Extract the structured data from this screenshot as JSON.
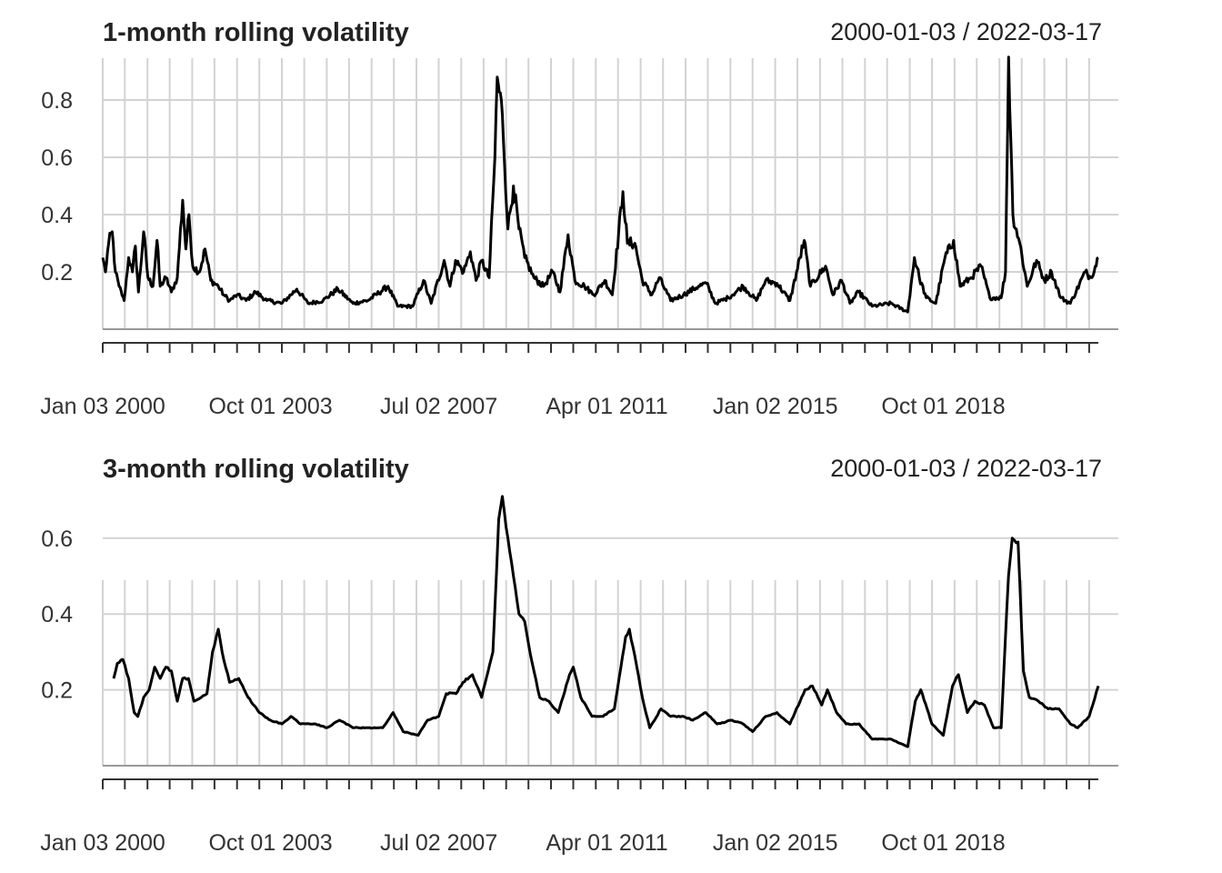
{
  "chart_data": [
    {
      "type": "line",
      "title": "1-month rolling volatility",
      "date_range_label": "2000-01-03 / 2022-03-17",
      "x_start": "2000-01-03",
      "x_end": "2022-03-17",
      "x_tick_labels": [
        {
          "date": "2000-01-03",
          "label": "Jan 03 2000"
        },
        {
          "date": "2003-10-01",
          "label": "Oct 01 2003"
        },
        {
          "date": "2007-07-02",
          "label": "Jul 02 2007"
        },
        {
          "date": "2011-04-01",
          "label": "Apr 01 2011"
        },
        {
          "date": "2015-01-02",
          "label": "Jan 02 2015"
        },
        {
          "date": "2018-10-01",
          "label": "Oct 01 2018"
        }
      ],
      "ylim": [
        0.0,
        0.95
      ],
      "y_ticks": [
        0.2,
        0.4,
        0.6,
        0.8
      ],
      "grid": true,
      "color": "#000000",
      "series": [
        {
          "points": [
            [
              "2000-01-03",
              0.25
            ],
            [
              "2000-01-25",
              0.2
            ],
            [
              "2000-02-20",
              0.3
            ],
            [
              "2000-03-20",
              0.34
            ],
            [
              "2000-04-15",
              0.2
            ],
            [
              "2000-05-15",
              0.15
            ],
            [
              "2000-06-25",
              0.1
            ],
            [
              "2000-08-01",
              0.25
            ],
            [
              "2000-09-01",
              0.2
            ],
            [
              "2000-09-25",
              0.29
            ],
            [
              "2000-10-20",
              0.13
            ],
            [
              "2000-12-01",
              0.34
            ],
            [
              "2001-01-05",
              0.18
            ],
            [
              "2001-02-15",
              0.15
            ],
            [
              "2001-03-20",
              0.31
            ],
            [
              "2001-04-15",
              0.15
            ],
            [
              "2001-06-01",
              0.18
            ],
            [
              "2001-07-15",
              0.13
            ],
            [
              "2001-09-01",
              0.18
            ],
            [
              "2001-10-15",
              0.45
            ],
            [
              "2001-11-10",
              0.28
            ],
            [
              "2001-12-05",
              0.4
            ],
            [
              "2002-01-05",
              0.22
            ],
            [
              "2002-03-01",
              0.2
            ],
            [
              "2002-04-15",
              0.28
            ],
            [
              "2002-06-01",
              0.17
            ],
            [
              "2002-08-01",
              0.15
            ],
            [
              "2002-09-15",
              0.12
            ],
            [
              "2002-11-01",
              0.1
            ],
            [
              "2003-01-01",
              0.12
            ],
            [
              "2003-03-15",
              0.1
            ],
            [
              "2003-06-01",
              0.13
            ],
            [
              "2003-09-01",
              0.1
            ],
            [
              "2004-01-01",
              0.09
            ],
            [
              "2004-05-01",
              0.14
            ],
            [
              "2004-08-01",
              0.09
            ],
            [
              "2004-12-01",
              0.1
            ],
            [
              "2005-04-01",
              0.14
            ],
            [
              "2005-08-01",
              0.09
            ],
            [
              "2005-12-01",
              0.1
            ],
            [
              "2006-05-15",
              0.15
            ],
            [
              "2006-08-01",
              0.08
            ],
            [
              "2006-12-01",
              0.08
            ],
            [
              "2007-02-28",
              0.17
            ],
            [
              "2007-05-01",
              0.09
            ],
            [
              "2007-08-15",
              0.24
            ],
            [
              "2007-10-01",
              0.15
            ],
            [
              "2007-11-15",
              0.24
            ],
            [
              "2008-01-20",
              0.2
            ],
            [
              "2008-03-15",
              0.27
            ],
            [
              "2008-05-01",
              0.17
            ],
            [
              "2008-06-15",
              0.24
            ],
            [
              "2008-08-15",
              0.18
            ],
            [
              "2008-10-01",
              0.6
            ],
            [
              "2008-10-20",
              0.88
            ],
            [
              "2008-12-01",
              0.75
            ],
            [
              "2009-01-15",
              0.35
            ],
            [
              "2009-03-01",
              0.5
            ],
            [
              "2009-04-15",
              0.35
            ],
            [
              "2009-06-01",
              0.25
            ],
            [
              "2009-08-15",
              0.18
            ],
            [
              "2009-11-01",
              0.15
            ],
            [
              "2010-01-15",
              0.2
            ],
            [
              "2010-03-15",
              0.13
            ],
            [
              "2010-05-20",
              0.33
            ],
            [
              "2010-07-15",
              0.17
            ],
            [
              "2010-10-01",
              0.15
            ],
            [
              "2010-12-15",
              0.12
            ],
            [
              "2011-03-15",
              0.17
            ],
            [
              "2011-05-15",
              0.12
            ],
            [
              "2011-08-10",
              0.48
            ],
            [
              "2011-09-15",
              0.3
            ],
            [
              "2011-11-15",
              0.3
            ],
            [
              "2012-01-15",
              0.17
            ],
            [
              "2012-04-01",
              0.12
            ],
            [
              "2012-06-01",
              0.18
            ],
            [
              "2012-09-01",
              0.1
            ],
            [
              "2012-12-15",
              0.12
            ],
            [
              "2013-04-15",
              0.15
            ],
            [
              "2013-06-20",
              0.16
            ],
            [
              "2013-09-01",
              0.09
            ],
            [
              "2013-12-15",
              0.11
            ],
            [
              "2014-04-15",
              0.15
            ],
            [
              "2014-08-01",
              0.1
            ],
            [
              "2014-10-15",
              0.17
            ],
            [
              "2015-01-15",
              0.16
            ],
            [
              "2015-05-01",
              0.1
            ],
            [
              "2015-08-25",
              0.31
            ],
            [
              "2015-10-15",
              0.15
            ],
            [
              "2016-02-15",
              0.22
            ],
            [
              "2016-04-15",
              0.12
            ],
            [
              "2016-06-25",
              0.17
            ],
            [
              "2016-09-01",
              0.09
            ],
            [
              "2016-11-10",
              0.13
            ],
            [
              "2017-03-01",
              0.08
            ],
            [
              "2017-08-01",
              0.09
            ],
            [
              "2017-12-15",
              0.06
            ],
            [
              "2018-02-08",
              0.25
            ],
            [
              "2018-03-20",
              0.18
            ],
            [
              "2018-05-15",
              0.11
            ],
            [
              "2018-08-01",
              0.09
            ],
            [
              "2018-10-15",
              0.25
            ],
            [
              "2018-12-24",
              0.31
            ],
            [
              "2019-02-15",
              0.15
            ],
            [
              "2019-05-15",
              0.18
            ],
            [
              "2019-08-05",
              0.22
            ],
            [
              "2019-10-15",
              0.11
            ],
            [
              "2020-01-15",
              0.11
            ],
            [
              "2020-02-20",
              0.2
            ],
            [
              "2020-03-16",
              0.95
            ],
            [
              "2020-04-20",
              0.4
            ],
            [
              "2020-06-15",
              0.3
            ],
            [
              "2020-08-15",
              0.15
            ],
            [
              "2020-10-30",
              0.24
            ],
            [
              "2021-01-01",
              0.17
            ],
            [
              "2021-03-01",
              0.2
            ],
            [
              "2021-05-15",
              0.11
            ],
            [
              "2021-08-01",
              0.09
            ],
            [
              "2021-11-30",
              0.2
            ],
            [
              "2022-01-15",
              0.18
            ],
            [
              "2022-03-17",
              0.25
            ]
          ]
        }
      ]
    },
    {
      "type": "line",
      "title": "3-month rolling volatility",
      "date_range_label": "2000-01-03 / 2022-03-17",
      "x_start": "2000-01-03",
      "x_end": "2022-03-17",
      "x_tick_labels": [
        {
          "date": "2000-01-03",
          "label": "Jan 03 2000"
        },
        {
          "date": "2003-10-01",
          "label": "Oct 01 2003"
        },
        {
          "date": "2007-07-02",
          "label": "Jul 02 2007"
        },
        {
          "date": "2011-04-01",
          "label": "Apr 01 2011"
        },
        {
          "date": "2015-01-02",
          "label": "Jan 02 2015"
        },
        {
          "date": "2018-10-01",
          "label": "Oct 01 2018"
        }
      ],
      "ylim": [
        0.0,
        0.7
      ],
      "y_ticks": [
        0.2,
        0.4,
        0.6
      ],
      "grid": true,
      "color": "#000000",
      "series": [
        {
          "points": [
            [
              "2000-04-01",
              0.23
            ],
            [
              "2000-05-01",
              0.27
            ],
            [
              "2000-06-15",
              0.28
            ],
            [
              "2000-08-01",
              0.23
            ],
            [
              "2000-09-15",
              0.14
            ],
            [
              "2000-10-15",
              0.13
            ],
            [
              "2000-12-01",
              0.18
            ],
            [
              "2001-01-15",
              0.2
            ],
            [
              "2001-03-01",
              0.26
            ],
            [
              "2001-04-15",
              0.23
            ],
            [
              "2001-06-01",
              0.26
            ],
            [
              "2001-07-15",
              0.25
            ],
            [
              "2001-09-01",
              0.17
            ],
            [
              "2001-10-15",
              0.23
            ],
            [
              "2001-12-01",
              0.23
            ],
            [
              "2002-01-15",
              0.17
            ],
            [
              "2002-03-15",
              0.18
            ],
            [
              "2002-05-01",
              0.19
            ],
            [
              "2002-06-15",
              0.3
            ],
            [
              "2002-08-01",
              0.36
            ],
            [
              "2002-09-01",
              0.3
            ],
            [
              "2002-11-01",
              0.22
            ],
            [
              "2003-01-15",
              0.23
            ],
            [
              "2003-04-01",
              0.18
            ],
            [
              "2003-07-01",
              0.14
            ],
            [
              "2003-10-01",
              0.12
            ],
            [
              "2004-01-01",
              0.11
            ],
            [
              "2004-03-15",
              0.13
            ],
            [
              "2004-06-01",
              0.11
            ],
            [
              "2004-10-01",
              0.11
            ],
            [
              "2005-01-01",
              0.1
            ],
            [
              "2005-04-15",
              0.12
            ],
            [
              "2005-08-01",
              0.1
            ],
            [
              "2005-12-01",
              0.1
            ],
            [
              "2006-04-01",
              0.1
            ],
            [
              "2006-06-25",
              0.14
            ],
            [
              "2006-09-15",
              0.09
            ],
            [
              "2007-01-15",
              0.08
            ],
            [
              "2007-04-01",
              0.12
            ],
            [
              "2007-07-01",
              0.13
            ],
            [
              "2007-09-01",
              0.19
            ],
            [
              "2007-11-20",
              0.19
            ],
            [
              "2008-01-15",
              0.22
            ],
            [
              "2008-04-01",
              0.24
            ],
            [
              "2008-06-15",
              0.18
            ],
            [
              "2008-09-15",
              0.3
            ],
            [
              "2008-11-01",
              0.65
            ],
            [
              "2008-12-01",
              0.71
            ],
            [
              "2009-01-15",
              0.6
            ],
            [
              "2009-03-01",
              0.5
            ],
            [
              "2009-04-15",
              0.4
            ],
            [
              "2009-06-01",
              0.38
            ],
            [
              "2009-08-01",
              0.27
            ],
            [
              "2009-10-01",
              0.18
            ],
            [
              "2009-12-15",
              0.17
            ],
            [
              "2010-03-01",
              0.14
            ],
            [
              "2010-06-01",
              0.24
            ],
            [
              "2010-07-01",
              0.26
            ],
            [
              "2010-09-01",
              0.18
            ],
            [
              "2010-12-01",
              0.13
            ],
            [
              "2011-03-01",
              0.13
            ],
            [
              "2011-06-01",
              0.15
            ],
            [
              "2011-09-01",
              0.34
            ],
            [
              "2011-10-01",
              0.36
            ],
            [
              "2011-11-15",
              0.29
            ],
            [
              "2012-01-15",
              0.18
            ],
            [
              "2012-03-15",
              0.1
            ],
            [
              "2012-06-15",
              0.15
            ],
            [
              "2012-09-01",
              0.13
            ],
            [
              "2012-12-15",
              0.13
            ],
            [
              "2013-03-01",
              0.12
            ],
            [
              "2013-06-15",
              0.14
            ],
            [
              "2013-09-15",
              0.11
            ],
            [
              "2014-01-15",
              0.12
            ],
            [
              "2014-04-15",
              0.11
            ],
            [
              "2014-07-01",
              0.09
            ],
            [
              "2014-10-15",
              0.13
            ],
            [
              "2015-01-15",
              0.14
            ],
            [
              "2015-05-01",
              0.11
            ],
            [
              "2015-09-01",
              0.2
            ],
            [
              "2015-11-01",
              0.21
            ],
            [
              "2016-01-15",
              0.16
            ],
            [
              "2016-03-01",
              0.2
            ],
            [
              "2016-05-15",
              0.14
            ],
            [
              "2016-08-01",
              0.11
            ],
            [
              "2016-11-15",
              0.11
            ],
            [
              "2017-03-01",
              0.07
            ],
            [
              "2017-08-01",
              0.07
            ],
            [
              "2017-12-15",
              0.05
            ],
            [
              "2018-02-15",
              0.17
            ],
            [
              "2018-04-01",
              0.2
            ],
            [
              "2018-07-01",
              0.11
            ],
            [
              "2018-10-01",
              0.08
            ],
            [
              "2018-12-15",
              0.21
            ],
            [
              "2019-02-01",
              0.24
            ],
            [
              "2019-04-15",
              0.14
            ],
            [
              "2019-06-15",
              0.17
            ],
            [
              "2019-09-01",
              0.16
            ],
            [
              "2019-11-15",
              0.1
            ],
            [
              "2020-01-15",
              0.1
            ],
            [
              "2020-03-15",
              0.5
            ],
            [
              "2020-04-15",
              0.6
            ],
            [
              "2020-06-01",
              0.59
            ],
            [
              "2020-07-15",
              0.25
            ],
            [
              "2020-09-01",
              0.18
            ],
            [
              "2020-11-15",
              0.17
            ],
            [
              "2021-02-01",
              0.15
            ],
            [
              "2021-05-01",
              0.15
            ],
            [
              "2021-08-01",
              0.11
            ],
            [
              "2021-10-01",
              0.1
            ],
            [
              "2022-01-01",
              0.13
            ],
            [
              "2022-03-17",
              0.21
            ]
          ]
        }
      ]
    }
  ]
}
